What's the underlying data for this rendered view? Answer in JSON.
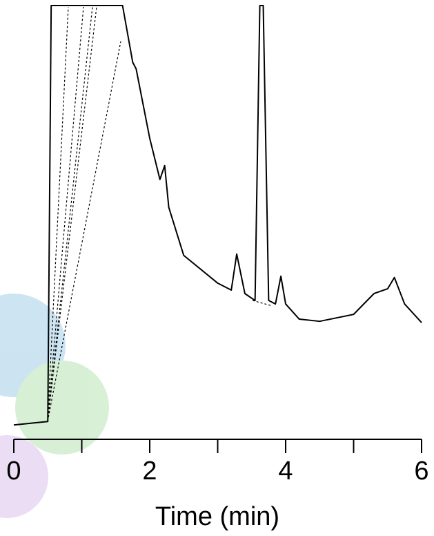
{
  "chart_data": {
    "type": "line",
    "xlabel": "Time (min)",
    "x": [
      0,
      0.5,
      0.55,
      1.6,
      1.75,
      1.8,
      2.0,
      2.15,
      2.22,
      2.28,
      2.5,
      3.0,
      3.2,
      3.28,
      3.4,
      3.55,
      3.62,
      3.67,
      3.75,
      3.85,
      3.93,
      4.0,
      4.2,
      4.5,
      5.0,
      5.3,
      5.5,
      5.6,
      5.75,
      6.0
    ],
    "series": [
      {
        "color": "#000000",
        "values": [
          3.3,
          4.1,
          100,
          100,
          86.9,
          85.4,
          69.4,
          59.9,
          63.1,
          53.5,
          42.4,
          36,
          34.4,
          42.7,
          33.6,
          32,
          100,
          100,
          32,
          31.2,
          37.6,
          31.2,
          27.7,
          27.2,
          28.8,
          33.6,
          34.7,
          37.3,
          31.2,
          26.9
        ]
      }
    ],
    "xlim": [
      0,
      6
    ],
    "xticks": [
      0,
      2,
      4,
      6
    ],
    "xminorticks": [
      1,
      3,
      5
    ],
    "ylim": [
      0,
      100
    ]
  }
}
